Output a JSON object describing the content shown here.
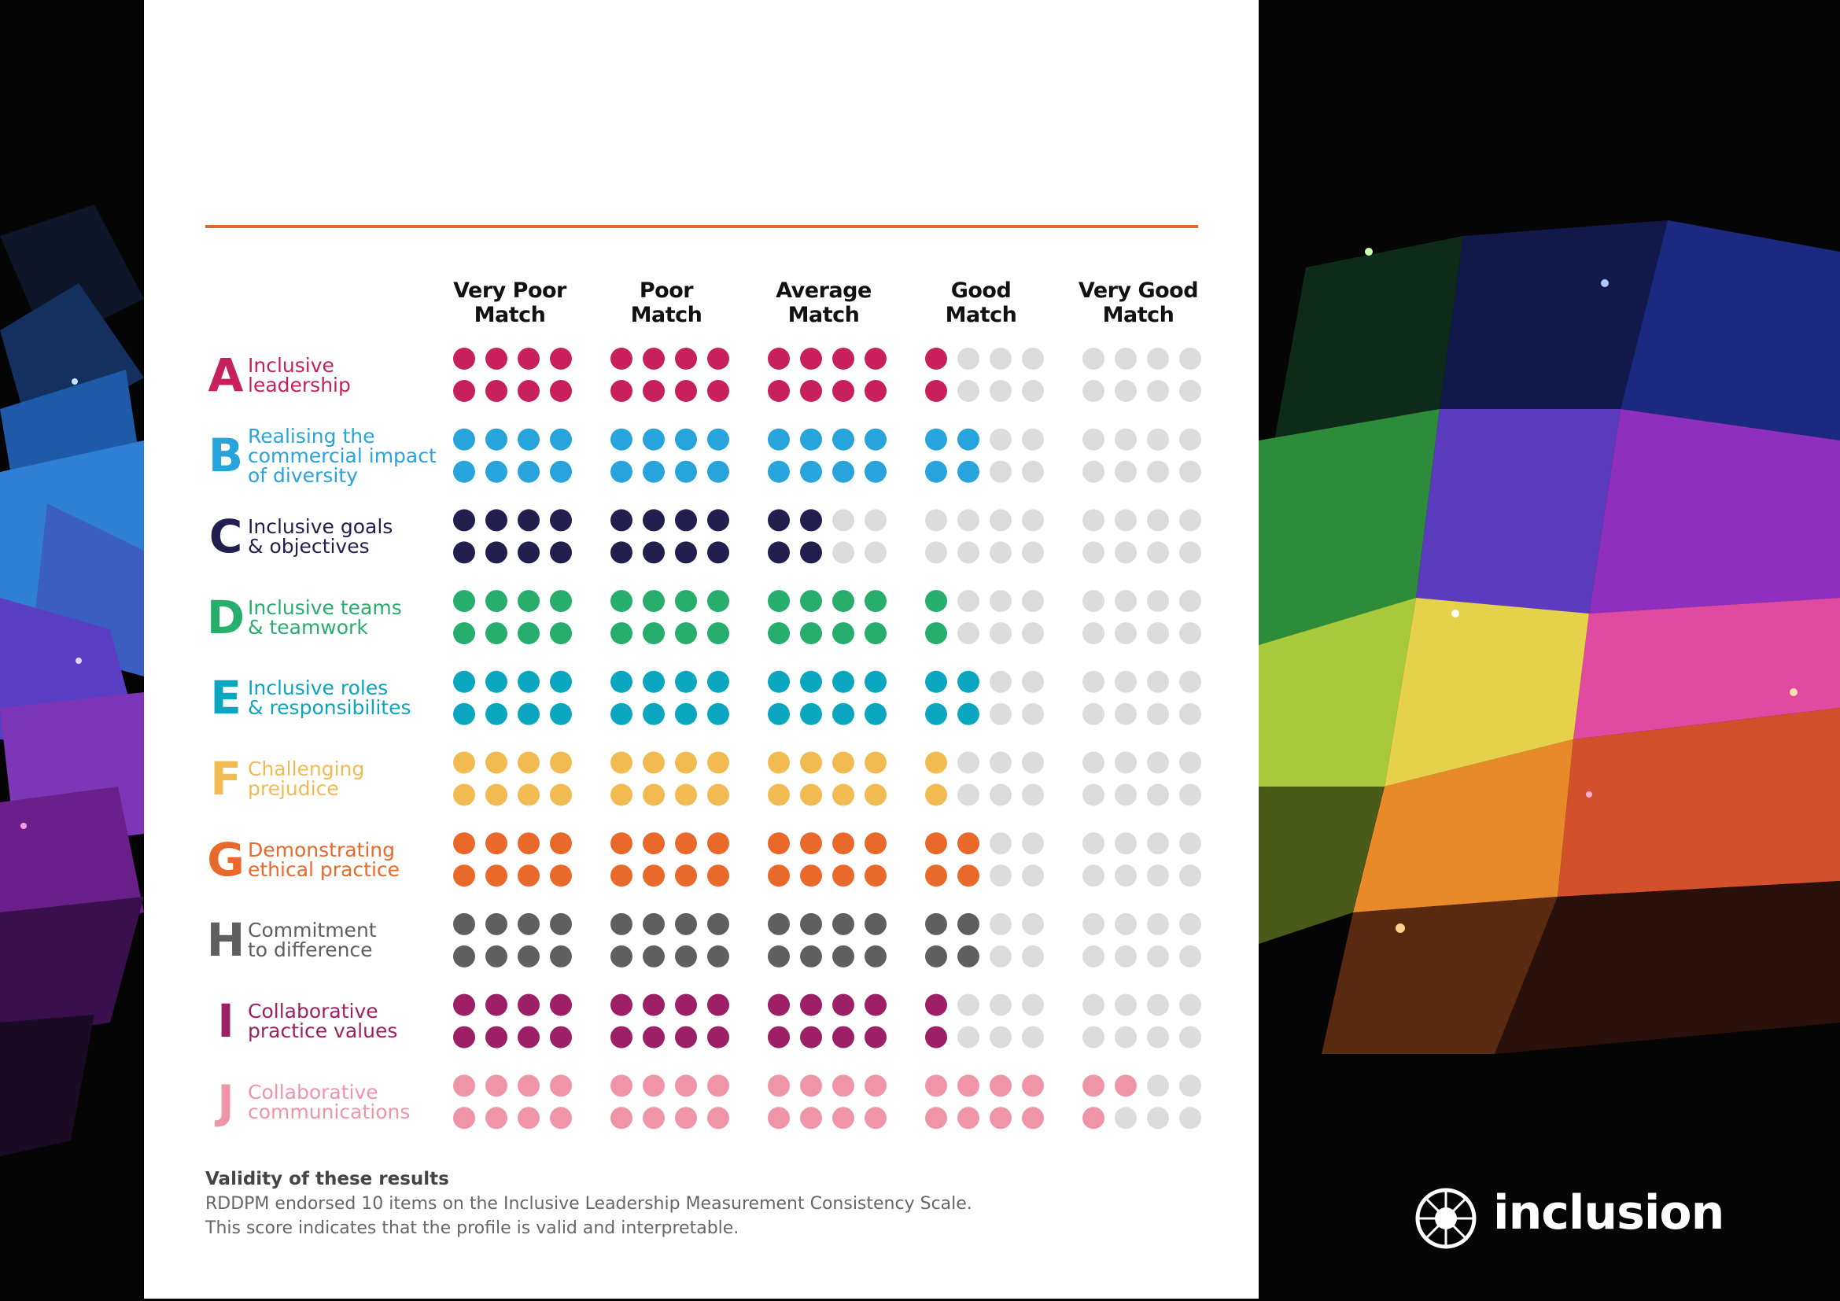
{
  "columns": [
    {
      "line1": "Very Poor",
      "line2": "Match"
    },
    {
      "line1": "Poor",
      "line2": "Match"
    },
    {
      "line1": "Average",
      "line2": "Match"
    },
    {
      "line1": "Good",
      "line2": "Match"
    },
    {
      "line1": "Very Good",
      "line2": "Match"
    }
  ],
  "empty_color": "#dcdcdc",
  "rows": [
    {
      "letter": "A",
      "label": "Inclusive leadership",
      "lines": [
        "Inclusive",
        "leadership"
      ],
      "color": "#c8205d",
      "top_filled": 13,
      "bottom_filled": 13
    },
    {
      "letter": "B",
      "label": "Realising the commercial impact of diversity",
      "lines": [
        "Realising the",
        "commercial impact",
        "of diversity"
      ],
      "color": "#27a4dc",
      "top_filled": 14,
      "bottom_filled": 14
    },
    {
      "letter": "C",
      "label": "Inclusive goals & objectives",
      "lines": [
        "Inclusive goals",
        "& objectives"
      ],
      "color": "#221f4f",
      "top_filled": 10,
      "bottom_filled": 10
    },
    {
      "letter": "D",
      "label": "Inclusive teams & teamwork",
      "lines": [
        "Inclusive teams",
        "& teamwork"
      ],
      "color": "#27ad6c",
      "top_filled": 13,
      "bottom_filled": 13
    },
    {
      "letter": "E",
      "label": "Inclusive roles & responsibilites",
      "lines": [
        "Inclusive roles",
        "& responsibilites"
      ],
      "color": "#0ba6bf",
      "top_filled": 14,
      "bottom_filled": 14
    },
    {
      "letter": "F",
      "label": "Challenging prejudice",
      "lines": [
        "Challenging",
        "prejudice"
      ],
      "color": "#f2bb52",
      "top_filled": 13,
      "bottom_filled": 13
    },
    {
      "letter": "G",
      "label": "Demonstrating ethical practice",
      "lines": [
        "Demonstrating",
        "ethical practice"
      ],
      "color": "#e8692a",
      "top_filled": 14,
      "bottom_filled": 14
    },
    {
      "letter": "H",
      "label": "Commitment to difference",
      "lines": [
        "Commitment",
        "to difference"
      ],
      "color": "#5f5f60",
      "top_filled": 14,
      "bottom_filled": 14
    },
    {
      "letter": "I",
      "label": "Collaborative practice values",
      "lines": [
        "Collaborative",
        "practice values"
      ],
      "color": "#9d1f66",
      "top_filled": 13,
      "bottom_filled": 13
    },
    {
      "letter": "J",
      "label": "Collaborative communications",
      "lines": [
        "Collaborative",
        "communications"
      ],
      "color": "#f095a7",
      "top_filled": 18,
      "bottom_filled": 17
    }
  ],
  "validity": {
    "title": "Validity of these results",
    "line1": "RDDPM endorsed 10 items on the Inclusive Leadership Measurement Consistency Scale.",
    "line2": "This score indicates that the profile is valid and interpretable."
  },
  "brand": {
    "name": "inclusion"
  }
}
